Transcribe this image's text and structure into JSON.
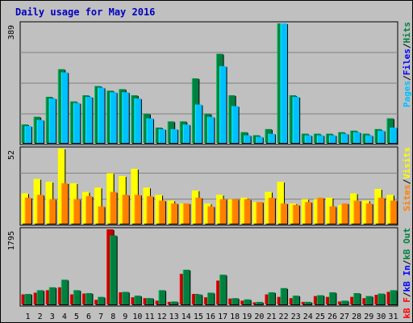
{
  "title": "Daily usage for May 2016",
  "chart_data": [
    {
      "type": "bar",
      "panel": "pages-files-hits",
      "categories": [
        "1",
        "2",
        "3",
        "4",
        "5",
        "6",
        "7",
        "8",
        "9",
        "10",
        "11",
        "12",
        "13",
        "14",
        "15",
        "16",
        "17",
        "18",
        "19",
        "20",
        "21",
        "22",
        "23",
        "24",
        "25",
        "26",
        "27",
        "28",
        "29",
        "30",
        "31"
      ],
      "weekend_days": [
        "1",
        "7",
        "8",
        "14",
        "15",
        "21",
        "22",
        "28",
        "29"
      ],
      "y_tick_label": "389",
      "ylim": [
        0,
        389
      ],
      "legend": [
        {
          "label": "Pages",
          "color": "#00c0ff"
        },
        {
          "label": "/",
          "color": "#000000"
        },
        {
          "label": "Files",
          "color": "#0000ff"
        },
        {
          "label": "/",
          "color": "#000000"
        },
        {
          "label": "Hits",
          "color": "#008040"
        }
      ],
      "series": [
        {
          "name": "Hits",
          "color": "#008040",
          "values": [
            60,
            85,
            150,
            240,
            135,
            155,
            185,
            170,
            175,
            155,
            95,
            50,
            70,
            70,
            210,
            95,
            290,
            155,
            35,
            25,
            45,
            389,
            155,
            30,
            30,
            30,
            35,
            40,
            30,
            45,
            80
          ]
        },
        {
          "name": "Files",
          "color": "#00c0ff",
          "values": [
            55,
            75,
            145,
            230,
            130,
            150,
            180,
            165,
            165,
            145,
            80,
            45,
            45,
            60,
            125,
            85,
            250,
            120,
            25,
            20,
            30,
            389,
            150,
            25,
            25,
            25,
            30,
            35,
            25,
            40,
            50
          ]
        }
      ]
    },
    {
      "type": "bar",
      "panel": "sites-visits",
      "categories": [
        "1",
        "2",
        "3",
        "4",
        "5",
        "6",
        "7",
        "8",
        "9",
        "10",
        "11",
        "12",
        "13",
        "14",
        "15",
        "16",
        "17",
        "18",
        "19",
        "20",
        "21",
        "22",
        "23",
        "24",
        "25",
        "26",
        "27",
        "28",
        "29",
        "30",
        "31"
      ],
      "y_tick_label": "52",
      "ylim": [
        0,
        52
      ],
      "legend": [
        {
          "label": "Sites",
          "color": "#ff8000"
        },
        {
          "label": "/",
          "color": "#000000"
        },
        {
          "label": "Visits",
          "color": "#ffff00"
        }
      ],
      "series": [
        {
          "name": "Visits",
          "color": "#ffff00",
          "values": [
            21,
            31,
            29,
            52,
            28,
            22,
            25,
            35,
            33,
            38,
            25,
            20,
            16,
            14,
            23,
            14,
            20,
            17,
            18,
            15,
            22,
            29,
            14,
            17,
            17,
            18,
            13,
            21,
            16,
            24,
            20
          ]
        },
        {
          "name": "Sites",
          "color": "#ff8000",
          "values": [
            18,
            20,
            17,
            28,
            17,
            19,
            12,
            22,
            20,
            20,
            19,
            16,
            14,
            14,
            18,
            12,
            17,
            17,
            17,
            15,
            18,
            14,
            13,
            15,
            18,
            12,
            14,
            16,
            14,
            18,
            16
          ]
        }
      ]
    },
    {
      "type": "bar",
      "panel": "kbf-kbin-kbout",
      "categories": [
        "1",
        "2",
        "3",
        "4",
        "5",
        "6",
        "7",
        "8",
        "9",
        "10",
        "11",
        "12",
        "13",
        "14",
        "15",
        "16",
        "17",
        "18",
        "19",
        "20",
        "21",
        "22",
        "23",
        "24",
        "25",
        "26",
        "27",
        "28",
        "29",
        "30",
        "31"
      ],
      "y_tick_label": "1795",
      "ylim": [
        0,
        1795
      ],
      "legend": [
        {
          "label": "kB F",
          "color": "#ff0000"
        },
        {
          "label": "/",
          "color": "#000000"
        },
        {
          "label": "kB In",
          "color": "#0000ff"
        },
        {
          "label": "/",
          "color": "#000000"
        },
        {
          "label": "kB Out",
          "color": "#008040"
        }
      ],
      "series": [
        {
          "name": "kB F",
          "color": "#c00000",
          "values": [
            240,
            280,
            340,
            410,
            240,
            260,
            110,
            1795,
            290,
            170,
            150,
            90,
            60,
            730,
            250,
            170,
            570,
            140,
            90,
            50,
            240,
            180,
            150,
            60,
            200,
            180,
            70,
            180,
            150,
            230,
            300
          ]
        },
        {
          "name": "kB Out",
          "color": "#008040",
          "values": [
            250,
            340,
            410,
            590,
            340,
            270,
            180,
            1650,
            300,
            210,
            150,
            340,
            70,
            830,
            240,
            280,
            710,
            150,
            120,
            60,
            290,
            390,
            210,
            60,
            220,
            290,
            90,
            270,
            200,
            260,
            340
          ]
        }
      ]
    }
  ]
}
